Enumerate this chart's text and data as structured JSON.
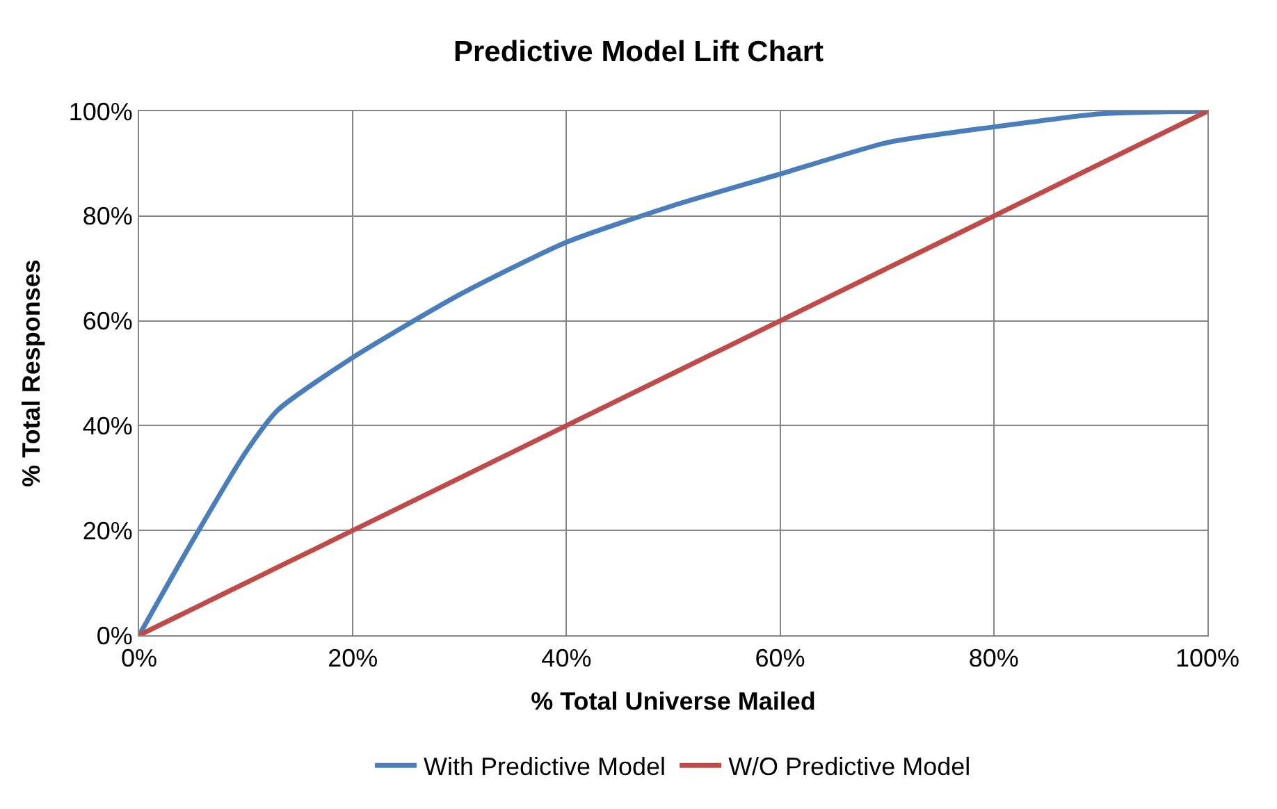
{
  "chart_data": {
    "type": "line",
    "title": "Predictive Model Lift Chart",
    "xlabel": "% Total Universe Mailed",
    "ylabel": "% Total Responses",
    "x": [
      0,
      5,
      10,
      13,
      20,
      30,
      40,
      50,
      60,
      70,
      80,
      90,
      100
    ],
    "series": [
      {
        "name": "With Predictive Model",
        "color": "#4a7ebb",
        "values": [
          0,
          18,
          35,
          43,
          53,
          65,
          75,
          82,
          88,
          94,
          97,
          99.5,
          100
        ]
      },
      {
        "name": "W/O Predictive Model",
        "color": "#be4b48",
        "values": [
          0,
          5,
          10,
          13,
          20,
          30,
          40,
          50,
          60,
          70,
          80,
          90,
          100
        ]
      }
    ],
    "xlim": [
      0,
      100
    ],
    "ylim": [
      0,
      100
    ],
    "xticks": [
      {
        "value": 0,
        "label": "0%"
      },
      {
        "value": 20,
        "label": "20%"
      },
      {
        "value": 40,
        "label": "40%"
      },
      {
        "value": 60,
        "label": "60%"
      },
      {
        "value": 80,
        "label": "80%"
      },
      {
        "value": 100,
        "label": "100%"
      }
    ],
    "yticks": [
      {
        "value": 0,
        "label": "0%"
      },
      {
        "value": 20,
        "label": "20%"
      },
      {
        "value": 40,
        "label": "40%"
      },
      {
        "value": 60,
        "label": "60%"
      },
      {
        "value": 80,
        "label": "80%"
      },
      {
        "value": 100,
        "label": "100%"
      }
    ],
    "grid": true,
    "legend": "bottom",
    "marker": "none",
    "line_style": "solid"
  }
}
